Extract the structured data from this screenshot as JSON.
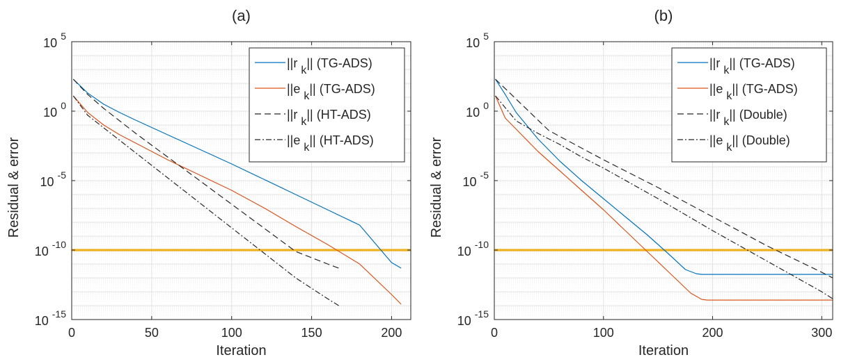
{
  "chart_data": [
    {
      "type": "line",
      "title": "(a)",
      "xlabel": "Iteration",
      "ylabel": "Residual & error",
      "xlim": [
        0,
        212
      ],
      "ylim_log10": [
        -15,
        5
      ],
      "yscale": "log",
      "grid": true,
      "minor_grid_y": true,
      "legend_position": "top-right",
      "xticks": [
        0,
        50,
        100,
        150,
        200
      ],
      "xtick_labels": [
        "0",
        "50",
        "100",
        "150",
        "200"
      ],
      "yticks_log10": [
        5,
        0,
        -5,
        -10,
        -15
      ],
      "ytick_labels": [
        {
          "base": "10",
          "exp": "5"
        },
        {
          "base": "10",
          "exp": "0"
        },
        {
          "base": "10",
          "exp": "-5"
        },
        {
          "base": "10",
          "exp": "-10"
        },
        {
          "base": "10",
          "exp": "-15"
        }
      ],
      "hline": {
        "y_log10": -10,
        "color": "#EDB120"
      },
      "series": [
        {
          "name": "||r k|| (TG-ADS)",
          "main": "||r",
          "sub": "k",
          "tail": "|| (TG-ADS)",
          "color": "#0072BD",
          "dash": "",
          "x": [
            1,
            10,
            20,
            30,
            40,
            60,
            80,
            100,
            120,
            140,
            160,
            180,
            200,
            206
          ],
          "y_log10": [
            2.3,
            1.3,
            0.5,
            -0.1,
            -0.65,
            -1.7,
            -2.75,
            -3.8,
            -4.9,
            -6.0,
            -7.1,
            -8.2,
            -10.9,
            -11.3
          ]
        },
        {
          "name": "||e k|| (TG-ADS)",
          "main": "||e",
          "sub": "k",
          "tail": "|| (TG-ADS)",
          "color": "#D95319",
          "dash": "",
          "x": [
            1,
            10,
            20,
            30,
            40,
            60,
            80,
            100,
            120,
            140,
            160,
            180,
            200,
            206
          ],
          "y_log10": [
            1.1,
            -0.1,
            -1.0,
            -1.7,
            -2.3,
            -3.5,
            -4.6,
            -5.7,
            -6.95,
            -8.3,
            -9.6,
            -11.0,
            -13.2,
            -13.9
          ]
        },
        {
          "name": "||r k|| (HT-ADS)",
          "main": "||r",
          "sub": "k",
          "tail": "|| (HT-ADS)",
          "color": "#262626",
          "dash": "9 5",
          "x": [
            1,
            10,
            20,
            30,
            40,
            60,
            80,
            100,
            120,
            140,
            160,
            167
          ],
          "y_log10": [
            2.3,
            1.2,
            0.2,
            -0.7,
            -1.6,
            -3.3,
            -5.0,
            -6.7,
            -8.4,
            -10.1,
            -11.0,
            -11.3
          ]
        },
        {
          "name": "||e k|| (HT-ADS)",
          "main": "||e",
          "sub": "k",
          "tail": "|| (HT-ADS)",
          "color": "#262626",
          "dash": "8 3 2 3",
          "x": [
            1,
            10,
            20,
            30,
            40,
            60,
            80,
            100,
            120,
            140,
            160,
            167
          ],
          "y_log10": [
            1.1,
            -0.3,
            -1.2,
            -2.1,
            -3.0,
            -4.8,
            -6.6,
            -8.4,
            -10.2,
            -12.0,
            -13.5,
            -14.0
          ]
        }
      ]
    },
    {
      "type": "line",
      "title": "(b)",
      "xlabel": "Iteration",
      "ylabel": "Residual & error",
      "xlim": [
        0,
        310
      ],
      "ylim_log10": [
        -15,
        5
      ],
      "yscale": "log",
      "grid": true,
      "minor_grid_y": true,
      "legend_position": "top-right",
      "xticks": [
        0,
        100,
        200,
        300
      ],
      "xtick_labels": [
        "0",
        "100",
        "200",
        "300"
      ],
      "yticks_log10": [
        5,
        0,
        -5,
        -10,
        -15
      ],
      "ytick_labels": [
        {
          "base": "10",
          "exp": "5"
        },
        {
          "base": "10",
          "exp": "0"
        },
        {
          "base": "10",
          "exp": "-5"
        },
        {
          "base": "10",
          "exp": "-10"
        },
        {
          "base": "10",
          "exp": "-15"
        }
      ],
      "hline": {
        "y_log10": -10,
        "color": "#EDB120"
      },
      "series": [
        {
          "name": "||r k|| (TG-ADS)",
          "main": "||r",
          "sub": "k",
          "tail": "|| (TG-ADS)",
          "color": "#0072BD",
          "dash": "",
          "x": [
            1,
            10,
            20,
            40,
            60,
            80,
            100,
            120,
            140,
            160,
            175,
            185,
            190,
            200,
            250,
            310
          ],
          "y_log10": [
            2.3,
            1.2,
            -0.1,
            -2.0,
            -3.6,
            -5.0,
            -6.3,
            -7.6,
            -8.9,
            -10.3,
            -11.4,
            -11.7,
            -11.75,
            -11.75,
            -11.75,
            -11.75
          ]
        },
        {
          "name": "||e k|| (TG-ADS)",
          "main": "||e",
          "sub": "k",
          "tail": "|| (TG-ADS)",
          "color": "#D95319",
          "dash": "",
          "x": [
            1,
            10,
            20,
            40,
            60,
            80,
            100,
            120,
            140,
            160,
            180,
            190,
            195,
            200,
            250,
            310
          ],
          "y_log10": [
            1.1,
            -0.5,
            -1.3,
            -2.9,
            -4.3,
            -5.7,
            -7.1,
            -8.6,
            -10.1,
            -11.6,
            -13.1,
            -13.55,
            -13.6,
            -13.6,
            -13.6,
            -13.6
          ]
        },
        {
          "name": "||r k|| (Double)",
          "main": "||r",
          "sub": "k",
          "tail": "|| (Double)",
          "color": "#262626",
          "dash": "9 5",
          "x": [
            1,
            50,
            100,
            150,
            200,
            250,
            300,
            310
          ],
          "y_log10": [
            2.3,
            -1.4,
            -3.5,
            -5.5,
            -7.6,
            -9.7,
            -11.6,
            -12.0
          ]
        },
        {
          "name": "||e k|| (Double)",
          "main": "||e",
          "sub": "k",
          "tail": "|| (Double)",
          "color": "#262626",
          "dash": "8 3 2 3",
          "x": [
            1,
            20,
            40,
            60,
            80,
            100,
            150,
            200,
            250,
            300,
            310
          ],
          "y_log10": [
            1.1,
            -0.7,
            -1.6,
            -2.4,
            -3.3,
            -4.1,
            -6.3,
            -8.6,
            -10.8,
            -13.0,
            -13.5
          ]
        }
      ]
    }
  ]
}
